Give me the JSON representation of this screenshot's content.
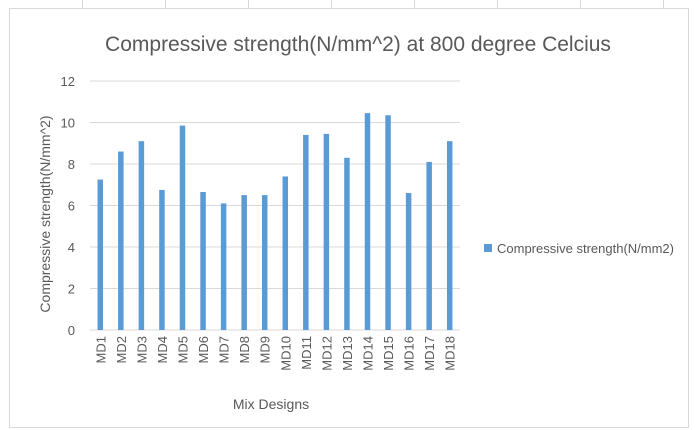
{
  "chart_data": {
    "type": "bar",
    "title": "Compressive strength(N/mm^2) at 800 degree Celcius",
    "xlabel": "Mix Designs",
    "ylabel": "Compressive strength(N/mm^2)",
    "categories": [
      "MD1",
      "MD2",
      "MD3",
      "MD4",
      "MD5",
      "MD6",
      "MD7",
      "MD8",
      "MD9",
      "MD10",
      "MD11",
      "MD12",
      "MD13",
      "MD14",
      "MD15",
      "MD16",
      "MD17",
      "MD18"
    ],
    "series": [
      {
        "name": "Compressive strength(N/mm2)",
        "color": "#5b9bd5",
        "values": [
          7.25,
          8.6,
          9.1,
          6.75,
          9.85,
          6.65,
          6.1,
          6.5,
          6.5,
          7.4,
          9.4,
          9.45,
          8.3,
          10.45,
          10.35,
          6.6,
          8.1,
          9.1
        ]
      }
    ],
    "ylim": [
      0,
      12
    ],
    "yticks": [
      0,
      2,
      4,
      6,
      8,
      10,
      12
    ],
    "grid": true,
    "legend_position": "right"
  }
}
